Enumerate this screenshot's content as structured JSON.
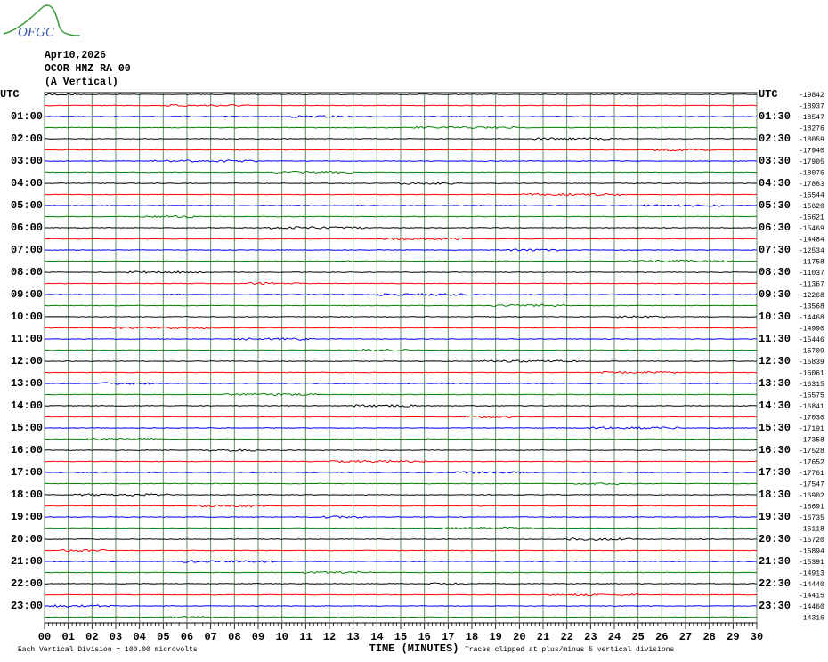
{
  "chart_data": {
    "type": "helicorder",
    "logo": "OFGC",
    "date": "Apr10,2026",
    "station": "OCOR HNZ RA 00",
    "component": "(A Vertical)",
    "left_labels": [
      "UTC",
      "01:00",
      "02:00",
      "03:00",
      "04:00",
      "05:00",
      "06:00",
      "07:00",
      "08:00",
      "09:00",
      "10:00",
      "11:00",
      "12:00",
      "13:00",
      "14:00",
      "15:00",
      "16:00",
      "17:00",
      "18:00",
      "19:00",
      "20:00",
      "21:00",
      "22:00",
      "23:00"
    ],
    "right_labels": [
      "UTC",
      "01:30",
      "02:30",
      "03:30",
      "04:30",
      "05:30",
      "06:30",
      "07:30",
      "08:30",
      "09:30",
      "10:30",
      "11:30",
      "12:30",
      "13:30",
      "14:30",
      "15:30",
      "16:30",
      "17:30",
      "18:30",
      "19:30",
      "20:30",
      "21:30",
      "22:30",
      "23:30"
    ],
    "trace_offsets": [
      -19842,
      -18937,
      -18547,
      -18276,
      -18059,
      -17940,
      -17905,
      -18076,
      -17883,
      -16544,
      -15620,
      -15621,
      -15469,
      -14484,
      -12534,
      -11758,
      -11037,
      -11367,
      -12268,
      -13568,
      -14468,
      -14990,
      -15446,
      -15709,
      -15839,
      -16061,
      -16315,
      -16575,
      -16841,
      -17030,
      -17191,
      -17358,
      -17528,
      -17652,
      -17761,
      -17547,
      -16902,
      -16691,
      -16735,
      -16118,
      -15720,
      -15894,
      -15391,
      -14913,
      -14440,
      -14415,
      -14460,
      -14316
    ],
    "trace_colors": [
      "#000000",
      "#ff0000",
      "#0000ff",
      "#008000"
    ],
    "xlim": [
      0,
      30
    ],
    "xticks": [
      {
        "value": 0,
        "label": "00"
      },
      {
        "value": 1,
        "label": "01"
      },
      {
        "value": 2,
        "label": "02"
      },
      {
        "value": 3,
        "label": "03"
      },
      {
        "value": 4,
        "label": "04"
      },
      {
        "value": 5,
        "label": "05"
      },
      {
        "value": 6,
        "label": "06"
      },
      {
        "value": 7,
        "label": "07"
      },
      {
        "value": 8,
        "label": "08"
      },
      {
        "value": 9,
        "label": "09"
      },
      10,
      11,
      12,
      13,
      14,
      15,
      16,
      17,
      18,
      19,
      20,
      21,
      22,
      23,
      24,
      25,
      26,
      27,
      28,
      29,
      30
    ],
    "xlabel": "TIME (MINUTES)",
    "footer_left": "Each Vertical Division =  100.00 microvolts",
    "footer_right": "Traces clipped at plus/minus 5 vertical divisions"
  }
}
